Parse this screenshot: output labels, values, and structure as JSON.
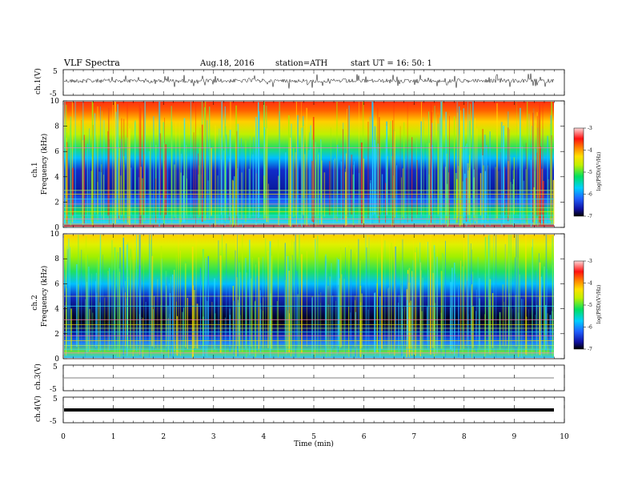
{
  "header": {
    "title": "VLF  Spectra",
    "date": "Aug.18, 2016",
    "station": "station=ATH",
    "start": "start  UT  =   16: 50: 1"
  },
  "chart_data": [
    {
      "type": "line",
      "panel": "ch1-waveform",
      "ylabel": "ch.1(V)",
      "ytick_labels": [
        "5",
        "-5"
      ],
      "ylim": [
        -5,
        5
      ],
      "xlim": [
        0,
        10
      ]
    },
    {
      "type": "heatmap",
      "panel": "ch1-spectrogram",
      "ylabel_line1": "ch.1",
      "ylabel_line2": "Frequency  (kHz)",
      "ytick_labels": [
        "0",
        "2",
        "4",
        "6",
        "8",
        "10"
      ],
      "ylim": [
        0,
        10
      ],
      "xlim": [
        0,
        10
      ],
      "colorbar": {
        "label": "log(PSD)(V²/Hz)",
        "tick_labels": [
          "-3",
          "-4",
          "-5",
          "-6",
          "-7"
        ],
        "range": [
          -7,
          -3
        ]
      }
    },
    {
      "type": "heatmap",
      "panel": "ch2-spectrogram",
      "ylabel_line1": "ch.2",
      "ylabel_line2": "Frequency  (kHz)",
      "ytick_labels": [
        "0",
        "2",
        "4",
        "6",
        "8",
        "10"
      ],
      "ylim": [
        0,
        10
      ],
      "xlim": [
        0,
        10
      ],
      "colorbar": {
        "label": "log(PSD)(V²/Hz)",
        "tick_labels": [
          "-3",
          "-4",
          "-5",
          "-6",
          "-7"
        ],
        "range": [
          -7,
          -3
        ]
      }
    },
    {
      "type": "line",
      "panel": "ch3-waveform",
      "ylabel": "ch.3(V)",
      "ytick_labels": [
        "5",
        "-5"
      ],
      "ylim": [
        -5,
        5
      ],
      "xlim": [
        0,
        10
      ]
    },
    {
      "type": "line",
      "panel": "ch4-waveform",
      "ylabel": "ch.4(V)",
      "ytick_labels": [
        "5",
        "-5"
      ],
      "ylim": [
        -5,
        5
      ],
      "xlim": [
        0,
        10
      ]
    }
  ],
  "xaxis": {
    "label": "Time  (min)",
    "tick_labels": [
      "0",
      "1",
      "2",
      "3",
      "4",
      "5",
      "6",
      "7",
      "8",
      "9",
      "10"
    ],
    "xlim": [
      0,
      10
    ]
  }
}
